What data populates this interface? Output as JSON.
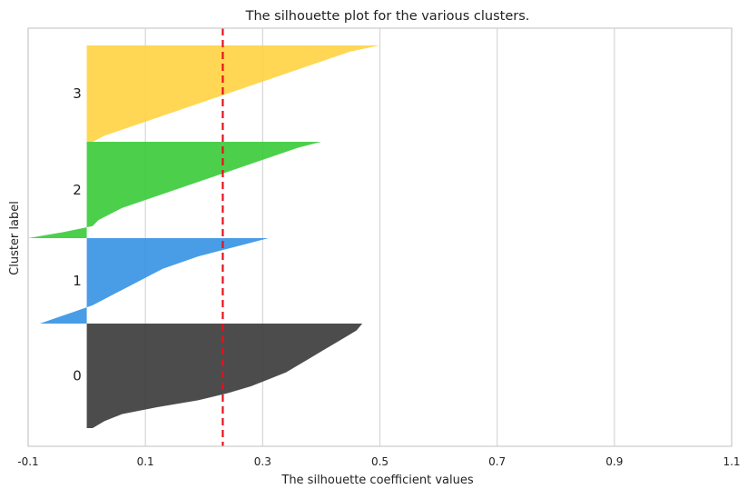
{
  "chart_data": {
    "type": "area",
    "title": "The silhouette plot for the various clusters.",
    "xlabel": "The silhouette coefficient values",
    "ylabel": "Cluster label",
    "xlim": [
      -0.1,
      1.1
    ],
    "xticks": [
      -0.1,
      0.1,
      0.3,
      0.5,
      0.7,
      0.9,
      1.1
    ],
    "xtick_labels": [
      "-0.1",
      "0.1",
      "0.3",
      "0.5",
      "0.7",
      "0.9",
      "1.1"
    ],
    "grid": true,
    "average_silhouette": 0.232,
    "average_line_color": "#e8101a",
    "clusters": [
      {
        "label": "0",
        "color": "#333333",
        "profile": [
          0.47,
          0.46,
          0.44,
          0.42,
          0.4,
          0.38,
          0.36,
          0.34,
          0.31,
          0.28,
          0.24,
          0.19,
          0.12,
          0.06,
          0.03,
          0.01
        ]
      },
      {
        "label": "1",
        "color": "#2f8fe3",
        "profile": [
          0.31,
          0.27,
          0.23,
          0.19,
          0.16,
          0.13,
          0.11,
          0.09,
          0.07,
          0.05,
          0.03,
          0.01,
          -0.02,
          -0.05,
          -0.08
        ]
      },
      {
        "label": "2",
        "color": "#33c933",
        "profile": [
          0.4,
          0.36,
          0.33,
          0.3,
          0.27,
          0.24,
          0.21,
          0.18,
          0.15,
          0.12,
          0.09,
          0.06,
          0.04,
          0.02,
          0.01,
          -0.04,
          -0.1
        ]
      },
      {
        "label": "3",
        "color": "#ffd23c",
        "profile": [
          0.5,
          0.45,
          0.42,
          0.39,
          0.36,
          0.33,
          0.3,
          0.27,
          0.24,
          0.21,
          0.18,
          0.15,
          0.12,
          0.09,
          0.06,
          0.03,
          0.01
        ]
      }
    ]
  }
}
